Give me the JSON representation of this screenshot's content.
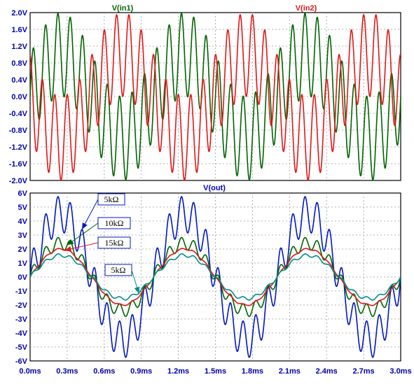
{
  "colors": {
    "in1": "#006400",
    "in2": "#e01818",
    "axis_text": "#0000aa",
    "out_title": "#0000cc",
    "grid": "#9a9a9a",
    "out_5k_a": "#0018c0",
    "out_10k": "#006400",
    "out_15k": "#e01818",
    "out_5k_b": "#008c8c"
  },
  "chart_data": [
    {
      "type": "line",
      "title": "",
      "xlabel": "",
      "ylabel": "",
      "x_unit": "ms",
      "y_unit": "V",
      "xlim": [
        0,
        3.0
      ],
      "ylim": [
        -2.0,
        2.0
      ],
      "grid": true,
      "y_ticks": [
        2.0,
        1.6,
        1.2,
        0.8,
        0.4,
        0.0,
        -0.4,
        -0.8,
        -1.2,
        -1.6,
        -2.0
      ],
      "y_tick_labels": [
        "2.0V",
        "1.6V",
        "1.2V",
        "0.8V",
        "0.4V",
        "0.0V",
        "-0.4V",
        "-0.8V",
        "-1.2V",
        "-1.6V",
        "-2.0V"
      ],
      "legend_labels": [
        "V(in1)",
        "V(in2)"
      ],
      "series": [
        {
          "name": "V(in1)",
          "color": "#006400",
          "description": "sum of 1 kHz and 10 kHz sinusoids, 1 V each",
          "components": [
            {
              "amplitude": 1.0,
              "freq_khz": 1.0,
              "phase_deg": 0
            },
            {
              "amplitude": 1.0,
              "freq_khz": 10.0,
              "phase_deg": 0
            }
          ]
        },
        {
          "name": "V(in2)",
          "color": "#e01818",
          "components": [
            {
              "amplitude": 1.0,
              "freq_khz": 1.0,
              "phase_deg": 180
            },
            {
              "amplitude": 1.0,
              "freq_khz": 10.0,
              "phase_deg": 90
            }
          ]
        }
      ]
    },
    {
      "type": "line",
      "title": "V(out)",
      "xlabel": "",
      "ylabel": "",
      "x_unit": "ms",
      "y_unit": "V",
      "xlim": [
        0,
        3.0
      ],
      "ylim": [
        -6,
        6
      ],
      "grid": true,
      "y_ticks": [
        6,
        5,
        4,
        3,
        2,
        1,
        0,
        -1,
        -2,
        -3,
        -4,
        -5,
        -6
      ],
      "y_tick_labels": [
        "6V",
        "5V",
        "4V",
        "3V",
        "2V",
        "1V",
        "0V",
        "-1V",
        "-2V",
        "-3V",
        "-4V",
        "-5V",
        "-6V"
      ],
      "x_ticks": [
        0.0,
        0.3,
        0.6,
        0.9,
        1.2,
        1.5,
        1.8,
        2.1,
        2.4,
        2.7,
        3.0
      ],
      "x_tick_labels": [
        "0.0ms",
        "0.3ms",
        "0.6ms",
        "0.9ms",
        "1.2ms",
        "1.5ms",
        "1.8ms",
        "2.1ms",
        "2.4ms",
        "2.7ms",
        "3.0ms"
      ],
      "series": [
        {
          "name": "5kΩ",
          "color": "#0018c0",
          "components": [
            {
              "amplitude": 4.5,
              "freq_khz": 1.0,
              "phase_deg": 0
            },
            {
              "amplitude": 1.3,
              "freq_khz": 10.0,
              "phase_deg": 0
            }
          ]
        },
        {
          "name": "10kΩ",
          "color": "#006400",
          "components": [
            {
              "amplitude": 2.4,
              "freq_khz": 1.0,
              "phase_deg": 0
            },
            {
              "amplitude": 0.45,
              "freq_khz": 10.0,
              "phase_deg": 0
            }
          ]
        },
        {
          "name": "15kΩ",
          "color": "#e01818",
          "components": [
            {
              "amplitude": 2.0,
              "freq_khz": 1.0,
              "phase_deg": 0
            },
            {
              "amplitude": 0.06,
              "freq_khz": 10.0,
              "phase_deg": 0
            }
          ]
        },
        {
          "name": "5kΩ",
          "color": "#008c8c",
          "components": [
            {
              "amplitude": 1.55,
              "freq_khz": 1.0,
              "phase_deg": 0
            },
            {
              "amplitude": 0.12,
              "freq_khz": 10.0,
              "phase_deg": 0
            }
          ]
        }
      ],
      "annotations": [
        {
          "text": "5kΩ",
          "series_index": 0
        },
        {
          "text": "10kΩ",
          "series_index": 1
        },
        {
          "text": "15kΩ",
          "series_index": 2
        },
        {
          "text": "5kΩ",
          "series_index": 3
        }
      ]
    }
  ]
}
